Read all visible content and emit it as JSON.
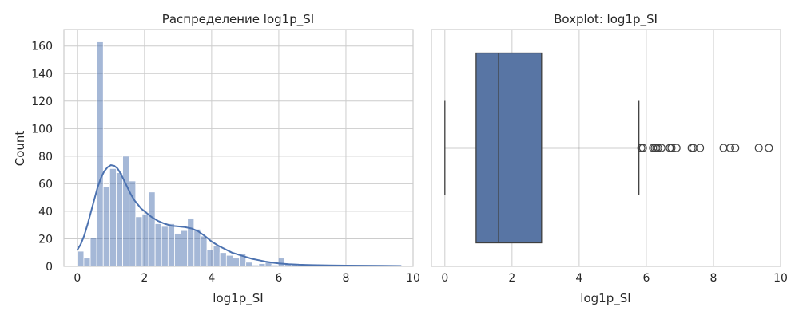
{
  "chart_data": [
    {
      "type": "histogram",
      "title": "Распределение log1p_SI",
      "xlabel": "log1p_SI",
      "ylabel": "Count",
      "xlim": [
        -0.4,
        10.0
      ],
      "ylim": [
        0,
        172
      ],
      "x_ticks": [
        "0",
        "2",
        "4",
        "6",
        "8",
        "10"
      ],
      "y_ticks": [
        "0",
        "20",
        "40",
        "60",
        "80",
        "100",
        "120",
        "140",
        "160"
      ],
      "grid": true,
      "bar_color": "#4c72b0",
      "bin_start": 0,
      "bin_width": 0.193,
      "values": [
        11,
        6,
        21,
        163,
        58,
        71,
        68,
        80,
        62,
        36,
        38,
        54,
        31,
        29,
        31,
        24,
        26,
        35,
        27,
        22,
        12,
        15,
        10,
        8,
        6,
        9,
        3,
        1,
        2,
        3,
        1,
        6,
        2,
        2,
        1,
        1,
        1,
        1,
        1,
        1,
        1,
        1,
        1,
        1,
        1,
        1,
        1,
        1,
        1,
        1
      ],
      "kde": {
        "color": "#4c72b0",
        "x": [
          0,
          0.1,
          0.2,
          0.3,
          0.4,
          0.5,
          0.6,
          0.7,
          0.8,
          0.9,
          1.0,
          1.1,
          1.2,
          1.3,
          1.4,
          1.5,
          1.6,
          1.7,
          1.8,
          1.9,
          2.0,
          2.2,
          2.4,
          2.6,
          2.8,
          3.0,
          3.2,
          3.4,
          3.6,
          3.8,
          4.0,
          4.2,
          4.4,
          4.6,
          4.8,
          5.0,
          5.2,
          5.4,
          5.6,
          5.8,
          6.0,
          6.3,
          6.6,
          7.0,
          7.5,
          8.0,
          8.5,
          9.0,
          9.65
        ],
        "y": [
          12,
          16,
          22,
          30,
          39,
          48,
          57,
          64,
          69,
          72,
          73.5,
          73,
          71,
          67,
          62,
          57,
          52,
          48,
          45,
          42,
          40,
          36,
          33,
          31,
          29.5,
          29,
          28.5,
          27.5,
          25.5,
          22,
          18,
          15,
          12.5,
          10,
          8.5,
          7,
          5.5,
          4.5,
          3.5,
          2.8,
          2.2,
          1.6,
          1.2,
          0.9,
          0.7,
          0.6,
          0.5,
          0.4,
          0.3
        ]
      }
    },
    {
      "type": "boxplot",
      "title": "Boxplot: log1p_SI",
      "xlabel": "log1p_SI",
      "xlim": [
        -0.4,
        10.0
      ],
      "x_ticks": [
        "0",
        "2",
        "4",
        "6",
        "8",
        "10"
      ],
      "grid": true,
      "box_color": "#5875a4",
      "whisker_low": 0.0,
      "q1": 0.93,
      "median": 1.6,
      "q3": 2.88,
      "whisker_high": 5.78,
      "outliers": [
        5.85,
        5.9,
        6.2,
        6.25,
        6.3,
        6.35,
        6.45,
        6.7,
        6.75,
        6.9,
        7.35,
        7.4,
        7.6,
        8.3,
        8.5,
        8.65,
        9.35,
        9.65
      ]
    }
  ]
}
